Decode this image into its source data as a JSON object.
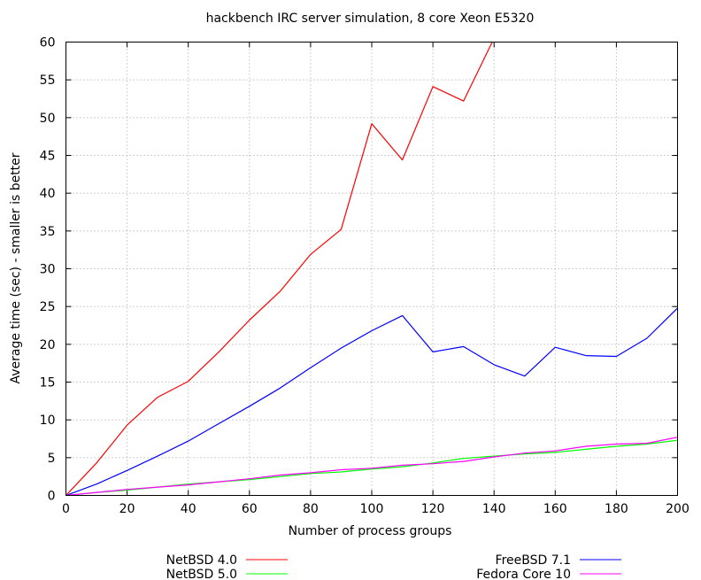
{
  "chart_data": {
    "type": "line",
    "title": "hackbench IRC server simulation, 8 core Xeon E5320",
    "xlabel": "Number of process groups",
    "ylabel": "Average time (sec) - smaller is better",
    "xlim": [
      0,
      200
    ],
    "ylim": [
      0,
      60
    ],
    "xticks": [
      0,
      20,
      40,
      60,
      80,
      100,
      120,
      140,
      160,
      180,
      200
    ],
    "yticks": [
      0,
      5,
      10,
      15,
      20,
      25,
      30,
      35,
      40,
      45,
      50,
      55,
      60
    ],
    "grid": true,
    "legend_position": "bottom",
    "series": [
      {
        "name": "NetBSD 4.0",
        "color": "#ff0000",
        "x": [
          0,
          10,
          20,
          30,
          40,
          50,
          60,
          70,
          80,
          90,
          100,
          110,
          120,
          130,
          140
        ],
        "y": [
          0,
          4.3,
          9.3,
          13.0,
          15.1,
          19.0,
          23.2,
          27.0,
          31.9,
          35.2,
          49.2,
          44.4,
          54.1,
          52.2,
          60.5
        ]
      },
      {
        "name": "NetBSD 5.0",
        "color": "#00ff00",
        "x": [
          0,
          10,
          20,
          30,
          40,
          50,
          60,
          70,
          80,
          90,
          100,
          110,
          120,
          130,
          140,
          150,
          160,
          170,
          180,
          190,
          200
        ],
        "y": [
          0,
          0.4,
          0.7,
          1.1,
          1.5,
          1.8,
          2.1,
          2.5,
          2.9,
          3.1,
          3.5,
          3.8,
          4.3,
          4.9,
          5.2,
          5.5,
          5.7,
          6.1,
          6.5,
          6.8,
          7.3
        ]
      },
      {
        "name": "FreeBSD 7.1",
        "color": "#0000ff",
        "x": [
          0,
          10,
          20,
          30,
          40,
          50,
          60,
          70,
          80,
          90,
          100,
          110,
          120,
          130,
          140,
          150,
          160,
          170,
          180,
          190,
          200
        ],
        "y": [
          0,
          1.5,
          3.3,
          5.2,
          7.2,
          9.5,
          11.8,
          14.2,
          16.9,
          19.5,
          21.8,
          23.8,
          19.0,
          19.7,
          17.3,
          15.8,
          19.6,
          18.5,
          18.4,
          20.8,
          24.8
        ]
      },
      {
        "name": "Fedora Core 10",
        "color": "#ff00ff",
        "x": [
          0,
          10,
          20,
          30,
          40,
          50,
          60,
          70,
          80,
          90,
          100,
          110,
          120,
          130,
          140,
          150,
          160,
          170,
          180,
          190,
          200
        ],
        "y": [
          0,
          0.4,
          0.8,
          1.1,
          1.4,
          1.8,
          2.2,
          2.7,
          3.0,
          3.4,
          3.6,
          4.0,
          4.2,
          4.5,
          5.1,
          5.6,
          5.9,
          6.5,
          6.8,
          6.9,
          7.7
        ]
      }
    ]
  }
}
